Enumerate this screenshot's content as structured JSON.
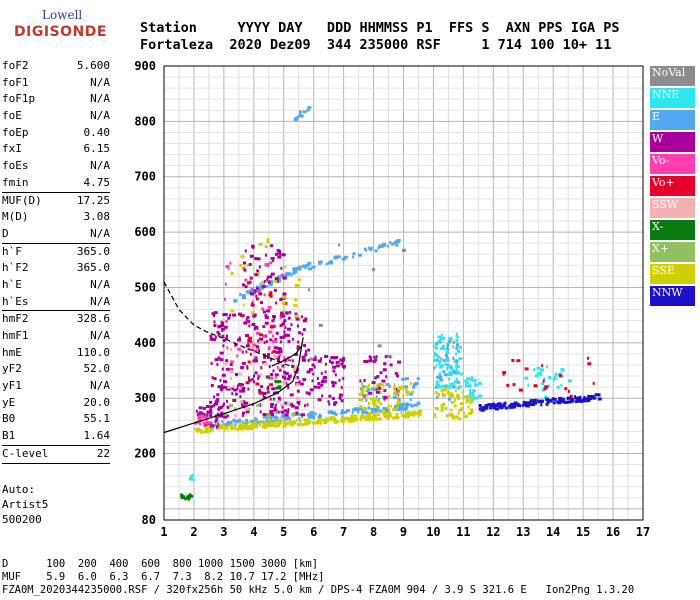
{
  "logo": {
    "line1": "Lowell",
    "line2": "DIGISONDE"
  },
  "header": {
    "line1": "Station     YYYY DAY   DDD HHMMSS P1  FFS S  AXN PPS IGA PS",
    "line2": "Fortaleza  2020 Dez09  344 235000 RSF     1 714 100 10+ 11"
  },
  "params": {
    "group1": [
      {
        "name": "foF2",
        "value": "5.600"
      },
      {
        "name": "foF1",
        "value": "N/A"
      },
      {
        "name": "foF1p",
        "value": "N/A"
      },
      {
        "name": "foE",
        "value": "N/A"
      },
      {
        "name": "foEp",
        "value": "0.40"
      },
      {
        "name": "fxI",
        "value": "6.15"
      },
      {
        "name": "foEs",
        "value": "N/A"
      },
      {
        "name": "fmin",
        "value": "4.75"
      }
    ],
    "group2": [
      {
        "name": "MUF(D)",
        "value": "17.25"
      },
      {
        "name": "M(D)",
        "value": "3.08"
      },
      {
        "name": "D",
        "value": "N/A"
      }
    ],
    "group3": [
      {
        "name": "h`F",
        "value": "365.0"
      },
      {
        "name": "h`F2",
        "value": "365.0"
      },
      {
        "name": "h`E",
        "value": "N/A"
      },
      {
        "name": "h`Es",
        "value": "N/A"
      }
    ],
    "group4": [
      {
        "name": "hmF2",
        "value": "328.6"
      },
      {
        "name": "hmF1",
        "value": "N/A"
      },
      {
        "name": "hmE",
        "value": "110.0"
      },
      {
        "name": "yF2",
        "value": "52.0"
      },
      {
        "name": "yF1",
        "value": "N/A"
      },
      {
        "name": "yE",
        "value": "20.0"
      },
      {
        "name": "B0",
        "value": "55.1"
      },
      {
        "name": "B1",
        "value": "1.64"
      }
    ],
    "group5": [
      {
        "name": "C-level",
        "value": "22"
      }
    ]
  },
  "auto": {
    "line1": "Auto:",
    "line2": "Artist5",
    "line3": "500200"
  },
  "legend": [
    {
      "label": "NoVal",
      "color": "#8c8c8c"
    },
    {
      "label": "NNE",
      "color": "#2ee6f0"
    },
    {
      "label": "E",
      "color": "#52a8ee"
    },
    {
      "label": "W",
      "color": "#a8009c"
    },
    {
      "label": "Vo-",
      "color": "#ff3fb0"
    },
    {
      "label": "Vo+",
      "color": "#e8002c"
    },
    {
      "label": "SSW",
      "color": "#f5b0b4"
    },
    {
      "label": "X-",
      "color": "#0a7a10"
    },
    {
      "label": "X+",
      "color": "#90c060"
    },
    {
      "label": "SSE",
      "color": "#d0d000"
    },
    {
      "label": "NNW",
      "color": "#1c10c8"
    }
  ],
  "bottom": {
    "line1": "D      100  200  400  600  800 1000 1500 3000 [km]",
    "line2": "MUF    5.9  6.0  6.3  6.7  7.3  8.2 10.7 17.2 [MHz]",
    "line3": "FZA0M_2020344235000.RSF / 320fx256h 50 kHz 5.0 km / DPS-4 FZA0M 904 / 3.9 S 321.6 E   Ion2Png 1.3.20"
  },
  "chart_data": {
    "type": "scatter",
    "title": "",
    "xlabel": "",
    "ylabel": "",
    "xlim": [
      1,
      17
    ],
    "ylim": [
      80,
      900
    ],
    "x_ticks": [
      1,
      2,
      3,
      4,
      5,
      6,
      7,
      8,
      9,
      10,
      11,
      12,
      13,
      14,
      15,
      16,
      17
    ],
    "y_ticks": [
      80,
      200,
      300,
      400,
      500,
      600,
      700,
      800,
      900
    ],
    "grid": true,
    "legend_position": "right",
    "series": [
      {
        "name": "E",
        "color": "#52a8ee",
        "clusters": [
          {
            "x": [
              3.3,
              5.8
            ],
            "y": [
              480,
              545
            ],
            "n": 70,
            "band": true
          },
          {
            "x": [
              5.8,
              8.8
            ],
            "y": [
              540,
              585
            ],
            "n": 40,
            "band": true
          },
          {
            "x": [
              5.3,
              5.8
            ],
            "y": [
              810,
              825
            ],
            "n": 10,
            "band": true
          },
          {
            "x": [
              2.5,
              9.5
            ],
            "y": [
              255,
              290
            ],
            "n": 150,
            "band": true
          },
          {
            "x": [
              7.5,
              9.5
            ],
            "y": [
              290,
              340
            ],
            "n": 40
          },
          {
            "x": [
              10.0,
              10.8
            ],
            "y": [
              300,
              410
            ],
            "n": 50
          }
        ]
      },
      {
        "name": "NNE",
        "color": "#2ee6f0",
        "clusters": [
          {
            "x": [
              1.8,
              2.0
            ],
            "y": [
              150,
              165
            ],
            "n": 4
          },
          {
            "x": [
              10.0,
              10.9
            ],
            "y": [
              320,
              420
            ],
            "n": 70
          },
          {
            "x": [
              11.0,
              11.5
            ],
            "y": [
              300,
              340
            ],
            "n": 25
          },
          {
            "x": [
              13.0,
              14.5
            ],
            "y": [
              300,
              360
            ],
            "n": 30
          }
        ]
      },
      {
        "name": "W",
        "color": "#a8009c",
        "clusters": [
          {
            "x": [
              2.5,
              5.8
            ],
            "y": [
              270,
              460
            ],
            "n": 300
          },
          {
            "x": [
              3.5,
              5.0
            ],
            "y": [
              460,
              580
            ],
            "n": 60
          },
          {
            "x": [
              5.8,
              7.0
            ],
            "y": [
              290,
              380
            ],
            "n": 60
          },
          {
            "x": [
              7.5,
              8.8
            ],
            "y": [
              300,
              380
            ],
            "n": 40
          },
          {
            "x": [
              2.0,
              3.0
            ],
            "y": [
              250,
              290
            ],
            "n": 40
          }
        ]
      },
      {
        "name": "Vo-",
        "color": "#ff3fb0",
        "clusters": [
          {
            "x": [
              3.0,
              5.0
            ],
            "y": [
              330,
              560
            ],
            "n": 40
          },
          {
            "x": [
              2.0,
              2.5
            ],
            "y": [
              255,
              270
            ],
            "n": 15
          }
        ]
      },
      {
        "name": "Vo+",
        "color": "#e8002c",
        "clusters": [
          {
            "x": [
              3.5,
              5.2
            ],
            "y": [
              300,
              520
            ],
            "n": 30
          },
          {
            "x": [
              12.2,
              15.5
            ],
            "y": [
              300,
              375
            ],
            "n": 20
          }
        ]
      },
      {
        "name": "SSW",
        "color": "#f5b0b4",
        "clusters": [
          {
            "x": [
              3.0,
              5.5
            ],
            "y": [
              250,
              420
            ],
            "n": 40
          }
        ]
      },
      {
        "name": "X-",
        "color": "#0a7a10",
        "clusters": [
          {
            "x": [
              1.5,
              1.9
            ],
            "y": [
              120,
              128
            ],
            "n": 12
          },
          {
            "x": [
              4.2,
              4.8
            ],
            "y": [
              300,
              340
            ],
            "n": 8
          }
        ]
      },
      {
        "name": "X+",
        "color": "#90c060",
        "clusters": [
          {
            "x": [
              2.5,
              5.5
            ],
            "y": [
              250,
              290
            ],
            "n": 20
          }
        ]
      },
      {
        "name": "SSE",
        "color": "#d0d000",
        "clusters": [
          {
            "x": [
              2.0,
              9.5
            ],
            "y": [
              245,
              275
            ],
            "n": 220,
            "band": true
          },
          {
            "x": [
              7.5,
              9.3
            ],
            "y": [
              270,
              330
            ],
            "n": 60
          },
          {
            "x": [
              10.0,
              11.3
            ],
            "y": [
              265,
              320
            ],
            "n": 60
          },
          {
            "x": [
              3.0,
              5.5
            ],
            "y": [
              450,
              600
            ],
            "n": 25
          }
        ]
      },
      {
        "name": "NNW",
        "color": "#1c10c8",
        "clusters": [
          {
            "x": [
              11.5,
              15.5
            ],
            "y": [
              285,
              305
            ],
            "n": 140,
            "band": true
          }
        ]
      },
      {
        "name": "NoVal",
        "color": "#8c8c8c",
        "clusters": [
          {
            "x": [
              5.5,
              9.0
            ],
            "y": [
              300,
              600
            ],
            "n": 10
          }
        ]
      }
    ],
    "profile_curve_dashed": [
      [
        1.0,
        510
      ],
      [
        1.5,
        460
      ],
      [
        2.0,
        432
      ],
      [
        2.5,
        418
      ],
      [
        3.0,
        408
      ],
      [
        3.5,
        396
      ],
      [
        4.0,
        385
      ],
      [
        4.5,
        374
      ],
      [
        5.0,
        362
      ],
      [
        5.3,
        357
      ]
    ],
    "trace_curve_solid": [
      [
        1.0,
        238
      ],
      [
        2.0,
        255
      ],
      [
        3.0,
        272
      ],
      [
        4.0,
        290
      ],
      [
        4.8,
        310
      ],
      [
        5.3,
        330
      ],
      [
        5.5,
        360
      ],
      [
        5.6,
        395
      ],
      [
        5.65,
        410
      ]
    ],
    "trace_curve_upper": [
      [
        4.6,
        358
      ],
      [
        5.0,
        368
      ],
      [
        5.4,
        380
      ],
      [
        5.6,
        395
      ]
    ]
  }
}
